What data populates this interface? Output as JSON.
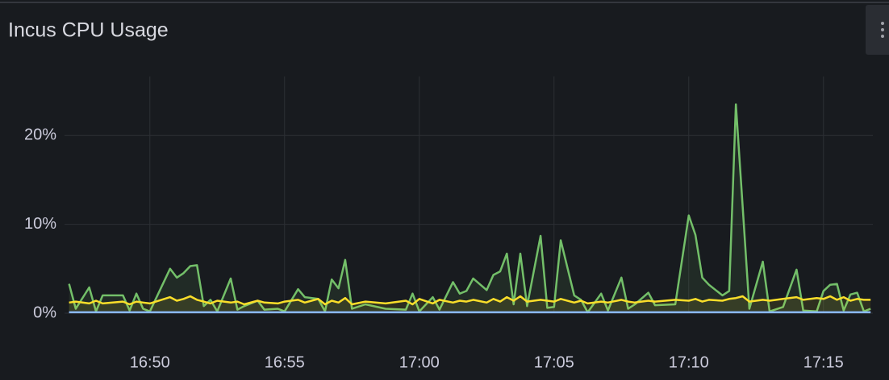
{
  "chart_data": {
    "type": "line",
    "title": "Incus CPU Usage",
    "x": [
      "16:47:00",
      "16:47:15",
      "16:47:45",
      "16:48:00",
      "16:48:15",
      "16:49:00",
      "16:49:15",
      "16:49:30",
      "16:49:45",
      "16:50:00",
      "16:50:45",
      "16:51:00",
      "16:51:15",
      "16:51:30",
      "16:51:45",
      "16:52:00",
      "16:52:15",
      "16:52:30",
      "16:53:00",
      "16:53:15",
      "16:53:30",
      "16:54:00",
      "16:54:15",
      "16:54:45",
      "16:55:00",
      "16:55:30",
      "16:55:45",
      "16:56:15",
      "16:56:30",
      "16:56:45",
      "16:57:00",
      "16:57:15",
      "16:57:30",
      "16:58:00",
      "16:58:45",
      "16:59:30",
      "16:59:45",
      "17:00:00",
      "17:00:30",
      "17:00:45",
      "17:01:15",
      "17:01:30",
      "17:01:45",
      "17:02:00",
      "17:02:30",
      "17:02:45",
      "17:03:00",
      "17:03:15",
      "17:03:30",
      "17:03:45",
      "17:04:00",
      "17:04:30",
      "17:04:45",
      "17:05:00",
      "17:05:15",
      "17:05:45",
      "17:06:00",
      "17:06:15",
      "17:06:45",
      "17:07:00",
      "17:07:30",
      "17:07:45",
      "17:08:00",
      "17:08:30",
      "17:08:45",
      "17:09:30",
      "17:10:00",
      "17:10:15",
      "17:10:30",
      "17:10:45",
      "17:11:15",
      "17:11:30",
      "17:11:45",
      "17:12:00",
      "17:12:15",
      "17:12:45",
      "17:13:00",
      "17:13:30",
      "17:14:00",
      "17:14:15",
      "17:14:45",
      "17:15:00",
      "17:15:15",
      "17:15:30",
      "17:15:45",
      "17:16:00",
      "17:16:15",
      "17:16:30",
      "17:16:45"
    ],
    "series": [
      {
        "color": "#73bf69",
        "values": [
          3.3,
          0.5,
          2.9,
          0.2,
          2.0,
          2.0,
          0.3,
          2.2,
          0.5,
          0.2,
          5.0,
          4.0,
          4.5,
          5.3,
          5.4,
          0.8,
          1.5,
          0.2,
          3.9,
          0.4,
          0.8,
          1.4,
          0.4,
          0.5,
          0.2,
          2.7,
          1.8,
          1.6,
          0.2,
          3.8,
          2.8,
          6.0,
          0.5,
          1.0,
          0.5,
          0.4,
          2.2,
          0.2,
          1.8,
          0.4,
          3.5,
          2.2,
          2.5,
          3.9,
          2.6,
          4.3,
          4.7,
          6.7,
          1.0,
          6.7,
          0.8,
          8.7,
          0.6,
          0.7,
          8.2,
          2.0,
          1.5,
          0.1,
          2.2,
          0.3,
          4.0,
          0.5,
          1.0,
          2.3,
          0.9,
          1.0,
          11,
          8.8,
          4.0,
          3.2,
          2.0,
          2.5,
          23.5,
          12,
          0.5,
          5.8,
          0.2,
          0.7,
          4.9,
          0.3,
          0.2,
          2.5,
          3.2,
          3.3,
          0.3,
          2.1,
          2.3,
          0.2,
          0.5
        ]
      },
      {
        "color": "#fade2a",
        "values": [
          1.2,
          1.3,
          1.1,
          1.4,
          1.1,
          1.3,
          1.0,
          1.3,
          1.2,
          1.1,
          1.8,
          1.4,
          1.6,
          1.9,
          1.5,
          1.3,
          1.1,
          1.4,
          1.2,
          1.3,
          1.0,
          1.4,
          1.2,
          1.1,
          1.3,
          1.5,
          1.2,
          1.6,
          1.0,
          1.4,
          1.2,
          1.7,
          1.0,
          1.3,
          1.1,
          1.4,
          1.0,
          1.6,
          1.1,
          1.5,
          1.2,
          1.4,
          1.3,
          1.5,
          1.2,
          1.6,
          1.3,
          1.8,
          1.4,
          1.9,
          1.3,
          1.5,
          1.4,
          1.3,
          1.6,
          1.2,
          1.4,
          1.1,
          1.3,
          1.2,
          1.5,
          1.3,
          1.2,
          1.4,
          1.3,
          1.5,
          1.4,
          1.6,
          1.3,
          1.5,
          1.4,
          1.6,
          1.7,
          1.9,
          1.3,
          1.5,
          1.4,
          1.6,
          1.8,
          1.5,
          1.7,
          1.6,
          1.9,
          1.5,
          1.8,
          1.4,
          1.6,
          1.5,
          1.5
        ]
      },
      {
        "color": "#8ab8ff",
        "values": [
          0.1,
          0.1,
          0.1,
          0.1,
          0.1,
          0.1,
          0.1,
          0.1,
          0.1,
          0.1,
          0.1,
          0.1,
          0.1,
          0.1,
          0.1,
          0.1,
          0.1,
          0.1,
          0.1,
          0.1,
          0.1,
          0.1,
          0.1,
          0.1,
          0.1,
          0.1,
          0.1,
          0.1,
          0.1,
          0.1,
          0.1,
          0.1,
          0.1,
          0.1,
          0.1,
          0.1,
          0.1,
          0.1,
          0.1,
          0.1,
          0.1,
          0.1,
          0.1,
          0.1,
          0.1,
          0.1,
          0.1,
          0.1,
          0.1,
          0.1,
          0.1,
          0.1,
          0.1,
          0.1,
          0.1,
          0.1,
          0.1,
          0.1,
          0.1,
          0.1,
          0.1,
          0.1,
          0.1,
          0.1,
          0.1,
          0.1,
          0.1,
          0.1,
          0.1,
          0.1,
          0.1,
          0.1,
          0.1,
          0.1,
          0.1,
          0.1,
          0.1,
          0.1,
          0.1,
          0.1,
          0.1,
          0.1,
          0.1,
          0.1,
          0.1,
          0.1,
          0.1,
          0.1,
          0.1
        ]
      }
    ],
    "xlim": [
      "16:46:50",
      "17:16:50"
    ],
    "xticks": [
      "16:50",
      "16:55",
      "17:00",
      "17:05",
      "17:10",
      "17:15"
    ],
    "ylim": [
      0,
      26
    ],
    "yticks": [
      {
        "value": 0,
        "label": "0%"
      },
      {
        "value": 10,
        "label": "10%"
      },
      {
        "value": 20,
        "label": "20%"
      }
    ],
    "grid": true,
    "fill": true
  }
}
